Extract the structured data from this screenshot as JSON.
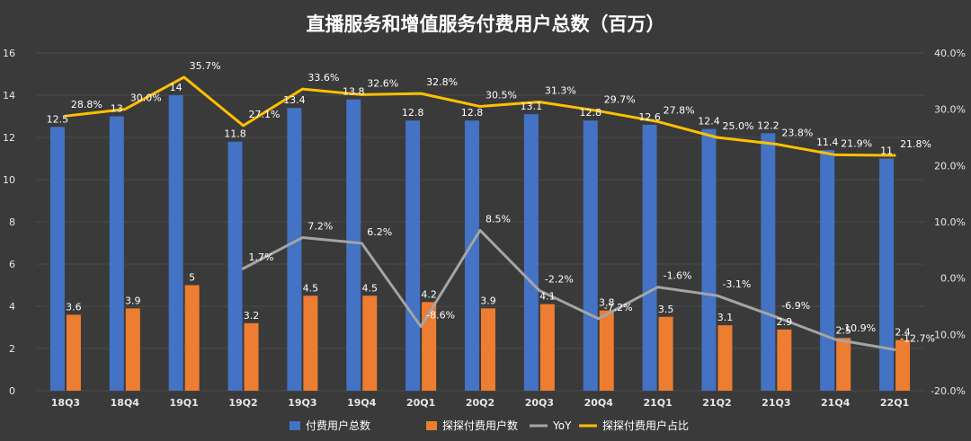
{
  "chart_data": {
    "type": "bar",
    "title": "直播服务和增值服务付费用户总数（百万）",
    "categories": [
      "18Q3",
      "18Q4",
      "19Q1",
      "19Q2",
      "19Q3",
      "19Q4",
      "20Q1",
      "20Q2",
      "20Q3",
      "20Q4",
      "21Q1",
      "21Q2",
      "21Q3",
      "21Q4",
      "22Q1"
    ],
    "left_axis": {
      "min": 0,
      "max": 16,
      "ticks": [
        "0",
        "2",
        "4",
        "6",
        "8",
        "10",
        "12",
        "14",
        "16"
      ]
    },
    "right_axis": {
      "min": -20,
      "max": 40,
      "ticks": [
        "-20.0%",
        "-10.0%",
        "0.0%",
        "10.0%",
        "20.0%",
        "30.0%",
        "40.0%"
      ]
    },
    "series": [
      {
        "name": "付费用户总数",
        "kind": "bar",
        "axis": "left",
        "color": "#4472c4",
        "values": [
          12.5,
          13,
          14,
          11.8,
          13.4,
          13.8,
          12.8,
          12.8,
          13.1,
          12.8,
          12.6,
          12.4,
          12.2,
          11.4,
          11
        ],
        "labels": [
          "12.5",
          "13",
          "14",
          "11.8",
          "13.4",
          "13.8",
          "12.8",
          "12.8",
          "13.1",
          "12.8",
          "12.6",
          "12.4",
          "12.2",
          "11.4",
          "11"
        ]
      },
      {
        "name": "探探付费用户数",
        "kind": "bar",
        "axis": "left",
        "color": "#ed7d31",
        "values": [
          3.6,
          3.9,
          5,
          3.2,
          4.5,
          4.5,
          4.2,
          3.9,
          4.1,
          3.8,
          3.5,
          3.1,
          2.9,
          2.5,
          2.4
        ],
        "labels": [
          "3.6",
          "3.9",
          "5",
          "3.2",
          "4.5",
          "4.5",
          "4.2",
          "3.9",
          "4.1",
          "3.8",
          "3.5",
          "3.1",
          "2.9",
          "2.5",
          "2.4"
        ]
      },
      {
        "name": "YoY",
        "kind": "line",
        "axis": "right",
        "color": "#a5a5a5",
        "values": [
          null,
          null,
          null,
          1.7,
          7.2,
          6.2,
          -8.6,
          8.5,
          -2.2,
          -7.2,
          -1.6,
          -3.1,
          -6.9,
          -10.9,
          -12.7
        ],
        "labels": [
          "",
          "",
          "",
          "1.7%",
          "7.2%",
          "6.2%",
          "-8.6%",
          "8.5%",
          "-2.2%",
          "-7.2%",
          "-1.6%",
          "-3.1%",
          "-6.9%",
          "-10.9%",
          "-12.7%"
        ]
      },
      {
        "name": "探探付费用户占比",
        "kind": "line",
        "axis": "right",
        "color": "#ffc000",
        "values": [
          28.8,
          30.0,
          35.7,
          27.1,
          33.6,
          32.6,
          32.8,
          30.5,
          31.3,
          29.7,
          27.8,
          25.0,
          23.8,
          21.9,
          21.8
        ],
        "labels": [
          "28.8%",
          "30.0%",
          "35.7%",
          "27.1%",
          "33.6%",
          "32.6%",
          "32.8%",
          "30.5%",
          "31.3%",
          "29.7%",
          "27.8%",
          "25.0%",
          "23.8%",
          "21.9%",
          "21.8%"
        ]
      }
    ],
    "legend": "bottom",
    "grid": true
  }
}
